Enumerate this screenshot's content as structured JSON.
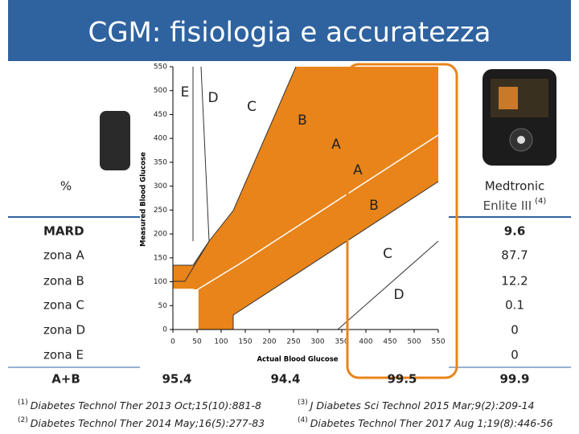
{
  "title": "CGM: fisiologia e accuratezza",
  "table": {
    "header": {
      "label": "%",
      "device": "Medtronic",
      "device_model": "Enlite III",
      "note": "(4)"
    },
    "rows": [
      {
        "label": "MARD",
        "value": 9.6
      },
      {
        "label": "zona A",
        "value": 87.7
      },
      {
        "label": "zona B",
        "value": 12.2
      },
      {
        "label": "zona C",
        "value": 0.1
      },
      {
        "label": "zona D",
        "value": 0
      },
      {
        "label": "zona E",
        "value": 0
      }
    ],
    "total": {
      "label": "A+B",
      "values": [
        95.4,
        94.4,
        99.5,
        99.9
      ]
    }
  },
  "footnotes": [
    {
      "marker": "(1)",
      "journal": "Diabetes Technol Ther",
      "citation": "2013 Oct;15(10):881-8"
    },
    {
      "marker": "(2)",
      "journal": "Diabetes Technol Ther",
      "citation": "2014 May;16(5):277-83"
    },
    {
      "marker": "(3)",
      "journal": "J Diabetes Sci Technol",
      "citation": "2015 Mar;9(2):209-14"
    },
    {
      "marker": "(4)",
      "journal": "Diabetes Technol Ther",
      "citation": "2017 Aug 1;19(8):446-56"
    }
  ],
  "error_grid": {
    "y_label": "Measured Blood Glucose",
    "x_label": "Actual Blood Glucose",
    "xlim": [
      0,
      550
    ],
    "ylim": [
      0,
      550
    ],
    "xticks": [
      0,
      50,
      100,
      150,
      200,
      250,
      300,
      350,
      400,
      450,
      500,
      550
    ],
    "yticks": [
      0,
      50,
      100,
      150,
      200,
      250,
      300,
      350,
      400,
      450,
      500,
      550
    ],
    "zone_labels": [
      "E",
      "D",
      "C",
      "B",
      "A",
      "A",
      "B",
      "C",
      "D"
    ]
  }
}
